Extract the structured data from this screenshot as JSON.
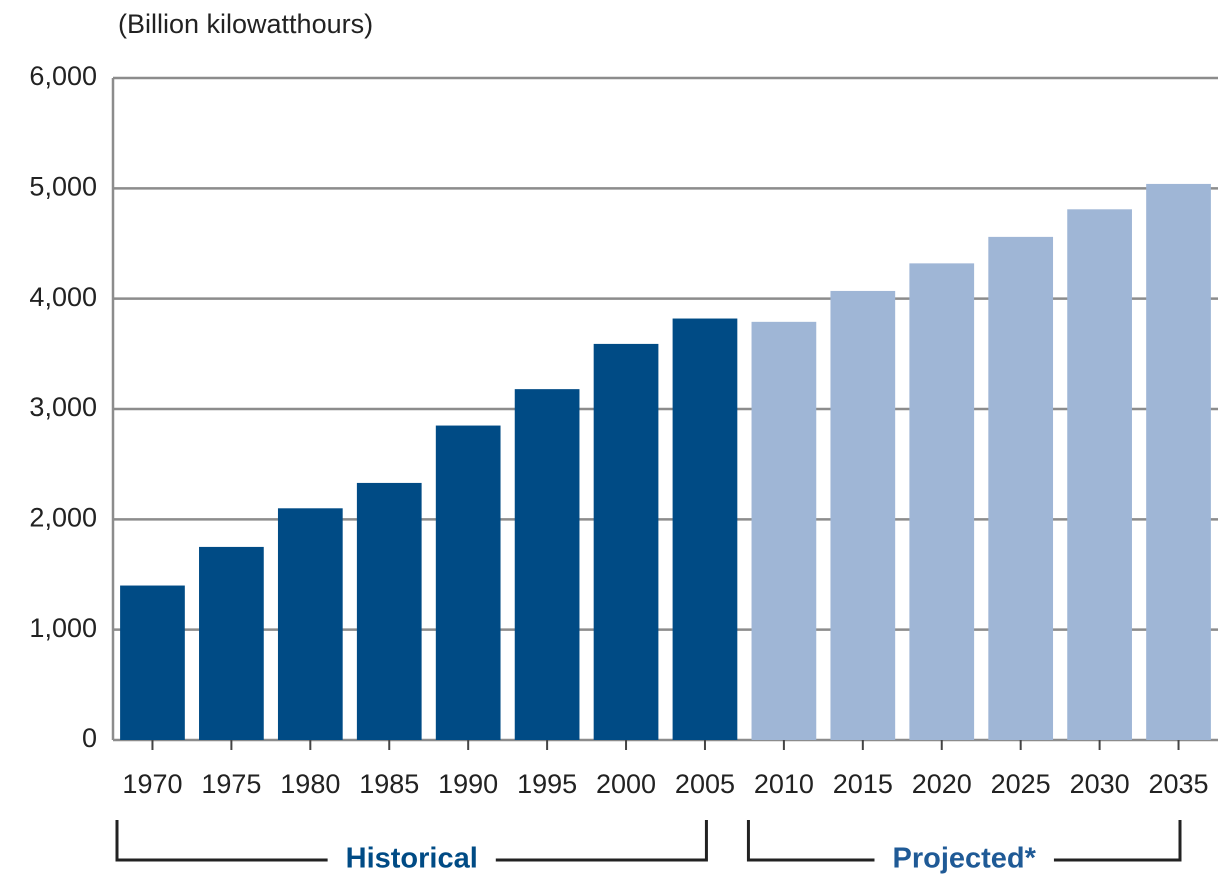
{
  "chart_data": {
    "type": "bar",
    "y_label": "(Billion kilowatthours)",
    "categories": [
      "1970",
      "1975",
      "1980",
      "1985",
      "1990",
      "1995",
      "2000",
      "2005",
      "2010",
      "2015",
      "2020",
      "2025",
      "2030",
      "2035"
    ],
    "series": [
      {
        "name": "Historical",
        "color": "#004b85",
        "values": [
          1400,
          1750,
          2100,
          2330,
          2850,
          3180,
          3590,
          3820,
          null,
          null,
          null,
          null,
          null,
          null
        ]
      },
      {
        "name": "Projected*",
        "color": "#9fb6d6",
        "values": [
          null,
          null,
          null,
          null,
          null,
          null,
          null,
          null,
          3790,
          4070,
          4320,
          4560,
          4810,
          5040
        ]
      }
    ],
    "ylim": [
      0,
      6000
    ],
    "yticks": [
      0,
      {
        "value": 1000,
        "label": "1,000"
      },
      {
        "value": 2000,
        "label": "2,000"
      },
      {
        "value": 3000,
        "label": "3,000"
      },
      {
        "value": 4000,
        "label": "4,000"
      },
      {
        "value": 5000,
        "label": "5,000"
      },
      {
        "value": 6000,
        "label": "6,000"
      }
    ],
    "grid": true
  }
}
